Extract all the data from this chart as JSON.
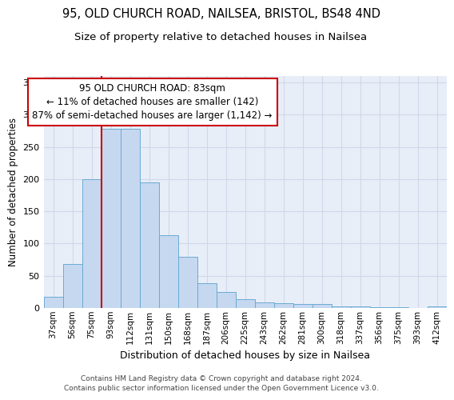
{
  "title_line1": "95, OLD CHURCH ROAD, NAILSEA, BRISTOL, BS48 4ND",
  "title_line2": "Size of property relative to detached houses in Nailsea",
  "xlabel": "Distribution of detached houses by size in Nailsea",
  "ylabel": "Number of detached properties",
  "categories": [
    "37sqm",
    "56sqm",
    "75sqm",
    "93sqm",
    "112sqm",
    "131sqm",
    "150sqm",
    "168sqm",
    "187sqm",
    "206sqm",
    "225sqm",
    "243sqm",
    "262sqm",
    "281sqm",
    "300sqm",
    "318sqm",
    "337sqm",
    "356sqm",
    "375sqm",
    "393sqm",
    "412sqm"
  ],
  "values": [
    17,
    68,
    200,
    278,
    278,
    195,
    113,
    79,
    39,
    25,
    14,
    9,
    7,
    6,
    6,
    3,
    2,
    1,
    1,
    0,
    3
  ],
  "bar_color": "#c5d8f0",
  "bar_edge_color": "#6aaad4",
  "vline_color": "#cc0000",
  "annotation_text": "95 OLD CHURCH ROAD: 83sqm\n← 11% of detached houses are smaller (142)\n87% of semi-detached houses are larger (1,142) →",
  "annotation_box_color": "#ffffff",
  "annotation_box_edge": "#cc0000",
  "ylim": [
    0,
    360
  ],
  "yticks": [
    0,
    50,
    100,
    150,
    200,
    250,
    300,
    350
  ],
  "grid_color": "#d0d8e8",
  "background_color": "#e8eef8",
  "footer_text": "Contains HM Land Registry data © Crown copyright and database right 2024.\nContains public sector information licensed under the Open Government Licence v3.0.",
  "title_fontsize": 10.5,
  "subtitle_fontsize": 9.5,
  "tick_fontsize": 7.5,
  "ylabel_fontsize": 8.5,
  "xlabel_fontsize": 9,
  "annotation_fontsize": 8.5,
  "footer_fontsize": 6.5
}
